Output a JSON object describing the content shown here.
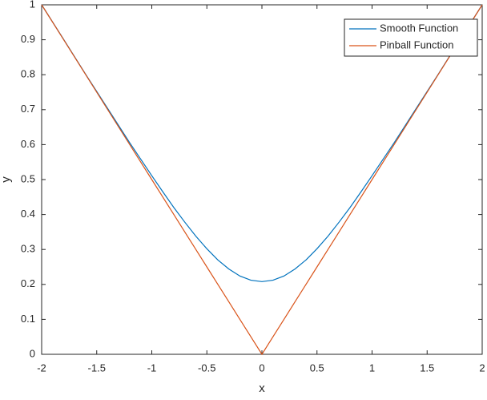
{
  "chart_data": {
    "type": "line",
    "x": [
      -2,
      -1.8,
      -1.6,
      -1.4,
      -1.2,
      -1,
      -0.9,
      -0.8,
      -0.7,
      -0.6,
      -0.5,
      -0.4,
      -0.3,
      -0.2,
      -0.1,
      0,
      0.1,
      0.2,
      0.3,
      0.4,
      0.5,
      0.6,
      0.7,
      0.8,
      0.9,
      1,
      1.2,
      1.4,
      1.6,
      1.8,
      2
    ],
    "series": [
      {
        "name": "Smooth Function",
        "color": "#0072bd",
        "values": [
          1.0,
          0.901,
          0.801,
          0.703,
          0.605,
          0.511,
          0.465,
          0.42,
          0.378,
          0.338,
          0.302,
          0.27,
          0.244,
          0.224,
          0.212,
          0.208,
          0.212,
          0.224,
          0.244,
          0.27,
          0.302,
          0.338,
          0.378,
          0.42,
          0.465,
          0.511,
          0.605,
          0.703,
          0.801,
          0.901,
          1.0
        ]
      },
      {
        "name": "Pinball Function",
        "color": "#d95319",
        "values": [
          1,
          0.9,
          0.8,
          0.7,
          0.6,
          0.5,
          0.45,
          0.4,
          0.35,
          0.3,
          0.25,
          0.2,
          0.15,
          0.1,
          0.05,
          0,
          0.05,
          0.1,
          0.15,
          0.2,
          0.25,
          0.3,
          0.35,
          0.4,
          0.45,
          0.5,
          0.6,
          0.7,
          0.8,
          0.9,
          1
        ]
      }
    ],
    "xlabel": "x",
    "ylabel": "y",
    "xlim": [
      -2,
      2
    ],
    "xticks": [
      -2,
      -1.5,
      -1,
      -0.5,
      0,
      0.5,
      1,
      1.5,
      2
    ],
    "ylim": [
      0,
      1
    ],
    "yticks": [
      0,
      0.1,
      0.2,
      0.3,
      0.4,
      0.5,
      0.6,
      0.7,
      0.8,
      0.9,
      1
    ],
    "grid": false,
    "legend": "northeast"
  }
}
